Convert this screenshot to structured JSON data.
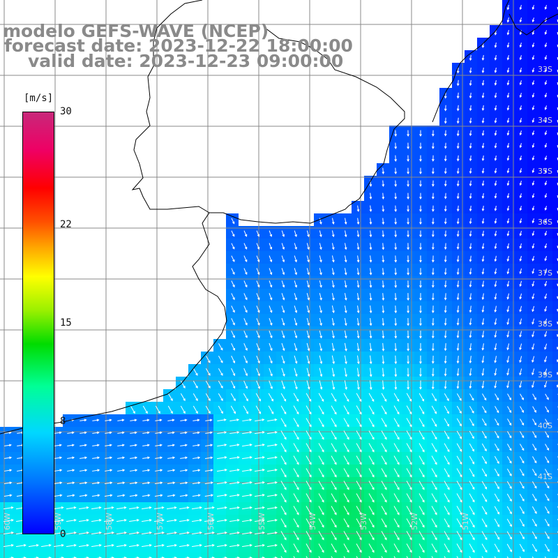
{
  "header": {
    "line1": "modelo GEFS-WAVE (NCEP)",
    "line2": "forecast date: 2023-12-22 18:00:00",
    "line3": "valid date: 2023-12-23 09:00:00"
  },
  "colorbar": {
    "unit": "[m/s]",
    "ticks": [
      {
        "label": "30",
        "value": 30
      },
      {
        "label": "22",
        "value": 22
      },
      {
        "label": "15",
        "value": 15
      },
      {
        "label": "8",
        "value": 8
      },
      {
        "label": "0",
        "value": 0
      }
    ],
    "vmin": 0,
    "vmax": 30
  },
  "lat_labels": [
    "33S",
    "34S",
    "35S",
    "36S",
    "37S",
    "38S",
    "39S",
    "40S",
    "41S"
  ],
  "lon_labels": [
    "60W",
    "59W",
    "58W",
    "57W",
    "56W",
    "55W",
    "54W",
    "53W",
    "52W",
    "51W"
  ],
  "colors": {
    "ocean_low": "#0000ff",
    "ocean_mid": "#00e6ff",
    "ocean_high": "#00e664",
    "land": "#ffffff",
    "grid": "#888888",
    "title": "#8a8a8a"
  }
}
